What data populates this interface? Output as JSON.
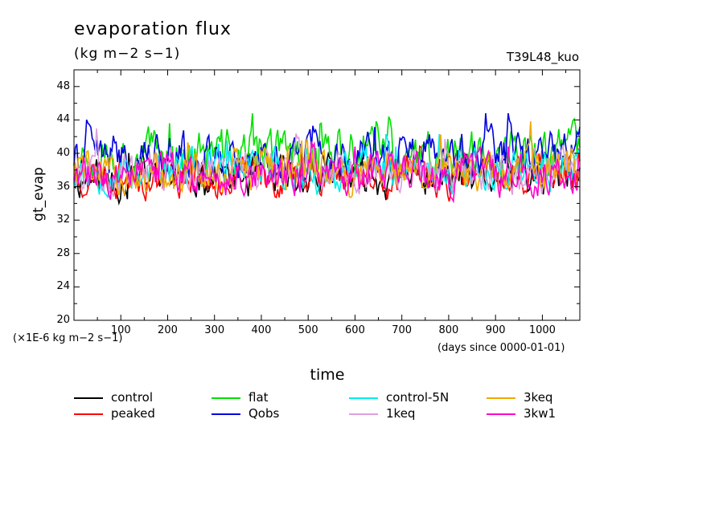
{
  "chart_data": {
    "type": "line",
    "title": "evaporation flux",
    "subtitle": "(kg m−2 s−1)",
    "run_label": "T39L48_kuo",
    "xlabel": "time",
    "ylabel": "gt_evap",
    "y_scale_note": "(×1E-6 kg m−2 s−1)",
    "x_unit_note": "(days since 0000-01-01)",
    "xlim": [
      0,
      1080
    ],
    "ylim": [
      20,
      50
    ],
    "x_ticks": [
      100,
      200,
      300,
      400,
      500,
      600,
      700,
      800,
      900,
      1000
    ],
    "y_ticks": [
      20,
      24,
      28,
      32,
      36,
      40,
      44,
      48
    ],
    "grid": false,
    "legend_position": "below-plot",
    "series": [
      {
        "name": "control",
        "color": "#000000",
        "mean": 37.0,
        "amp": 1.6,
        "seed": 11
      },
      {
        "name": "peaked",
        "color": "#ff0000",
        "mean": 37.2,
        "amp": 1.5,
        "seed": 23
      },
      {
        "name": "flat",
        "color": "#00e000",
        "mean": 40.0,
        "amp": 1.9,
        "seed": 37
      },
      {
        "name": "Qobs",
        "color": "#0000dd",
        "mean": 39.6,
        "amp": 1.8,
        "seed": 41
      },
      {
        "name": "control-5N",
        "color": "#00eeee",
        "mean": 38.0,
        "amp": 1.6,
        "seed": 53
      },
      {
        "name": "1keq",
        "color": "#dda0dd",
        "mean": 37.8,
        "amp": 1.6,
        "seed": 67
      },
      {
        "name": "3keq",
        "color": "#f0a800",
        "mean": 37.8,
        "amp": 1.7,
        "seed": 79
      },
      {
        "name": "3kw1",
        "color": "#ff00cc",
        "mean": 37.4,
        "amp": 1.6,
        "seed": 83
      }
    ]
  }
}
